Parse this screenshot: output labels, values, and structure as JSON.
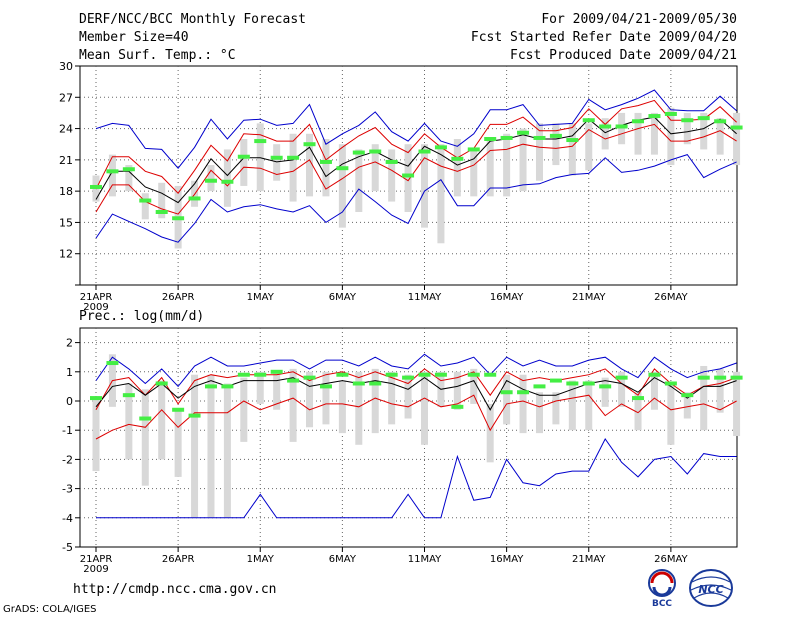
{
  "header": {
    "title": "DERF/NCC/BCC Monthly Forecast",
    "member_size": "Member Size=40",
    "variable": "Mean Surf. Temp.: °C",
    "period": "For 2009/04/21-2009/05/30",
    "fcst_started": "Fcst Started Refer Date 2009/04/20",
    "fcst_produced": "Fcst Produced Date 2009/04/21"
  },
  "footer": {
    "url": "http://cmdp.ncc.cma.gov.cn",
    "credit": "GrADS: COLA/IGES",
    "bcc_logo_text": "BCC",
    "ncc_logo_text": "NCC"
  },
  "colors": {
    "envelope": "#0000cc",
    "std_band": "#dd0000",
    "ensemble_mean": "#000000",
    "box": "#d8d8d8",
    "member_mark": "#44ee44",
    "grid": "#666666"
  },
  "chart_data": [
    {
      "type": "line",
      "title": "",
      "xlabel": "",
      "ylabel": "Mean Surf. Temp.: °C",
      "ylim": [
        9,
        30
      ],
      "yticks": [
        9,
        12,
        15,
        18,
        21,
        24,
        27,
        30
      ],
      "ytick_labels": [
        "",
        "12",
        "15",
        "18",
        "21",
        "24",
        "27",
        "30"
      ],
      "xlim": [
        1,
        41
      ],
      "xticks": [
        {
          "day": 1,
          "label": "21APR",
          "sub": "2009"
        },
        {
          "day": 6,
          "label": "26APR"
        },
        {
          "day": 11,
          "label": "1MAY"
        },
        {
          "day": 16,
          "label": "6MAY"
        },
        {
          "day": 21,
          "label": "11MAY"
        },
        {
          "day": 26,
          "label": "16MAY"
        },
        {
          "day": 31,
          "label": "21MAY"
        },
        {
          "day": 36,
          "label": "26MAY"
        }
      ],
      "days": [
        1,
        2,
        3,
        4,
        5,
        6,
        7,
        8,
        9,
        10,
        11,
        12,
        13,
        14,
        15,
        16,
        17,
        18,
        19,
        20,
        21,
        22,
        23,
        24,
        25,
        26,
        27,
        28,
        29,
        30,
        31,
        32,
        33,
        34,
        35,
        36,
        37,
        38,
        39,
        40
      ],
      "series": [
        {
          "name": "max",
          "values": [
            24.0,
            24.5,
            24.3,
            22.1,
            22.0,
            20.2,
            22.2,
            24.9,
            23.0,
            24.8,
            24.9,
            24.3,
            24.5,
            26.3,
            22.5,
            23.5,
            24.3,
            25.6,
            23.7,
            22.8,
            24.5,
            22.8,
            22.3,
            23.5,
            25.8,
            25.8,
            26.3,
            24.3,
            24.4,
            24.5,
            26.8,
            25.8,
            26.3,
            26.9,
            27.7,
            25.8,
            25.7,
            25.7,
            27.1,
            25.7
          ]
        },
        {
          "name": "upper",
          "values": [
            18.2,
            21.3,
            21.3,
            19.9,
            19.4,
            17.8,
            20.0,
            22.4,
            20.9,
            23.5,
            23.4,
            22.8,
            22.8,
            24.4,
            21.0,
            22.2,
            23.3,
            24.1,
            22.5,
            21.7,
            23.5,
            22.2,
            21.2,
            22.1,
            24.4,
            24.4,
            25.1,
            23.8,
            23.8,
            24.1,
            25.9,
            24.4,
            25.9,
            26.2,
            26.7,
            24.8,
            24.8,
            24.9,
            26.1,
            24.6
          ]
        },
        {
          "name": "mean",
          "values": [
            17.2,
            19.9,
            19.9,
            18.4,
            17.8,
            16.9,
            18.7,
            21.1,
            19.5,
            21.2,
            21.2,
            20.8,
            21.0,
            22.2,
            19.4,
            20.6,
            21.3,
            21.8,
            21.0,
            20.4,
            22.3,
            21.5,
            20.5,
            21.1,
            22.8,
            23.0,
            23.4,
            23.0,
            23.0,
            23.3,
            24.9,
            23.6,
            24.3,
            24.8,
            25.1,
            23.5,
            23.7,
            24.0,
            24.9,
            23.5
          ]
        },
        {
          "name": "lower",
          "values": [
            16.0,
            18.6,
            18.6,
            17.0,
            16.3,
            15.8,
            17.7,
            20.0,
            18.5,
            20.3,
            20.2,
            19.6,
            19.9,
            21.0,
            18.2,
            19.2,
            20.3,
            20.8,
            20.0,
            19.0,
            21.2,
            20.4,
            19.9,
            20.5,
            21.9,
            22.0,
            22.5,
            22.2,
            22.1,
            22.3,
            23.9,
            23.0,
            23.5,
            24.0,
            24.4,
            22.8,
            22.8,
            23.2,
            23.8,
            22.8
          ]
        },
        {
          "name": "min",
          "values": [
            13.5,
            15.8,
            15.1,
            14.4,
            13.6,
            13.1,
            14.9,
            17.2,
            16.0,
            16.5,
            16.7,
            16.3,
            16.0,
            16.6,
            15.0,
            16.0,
            18.2,
            17.0,
            15.7,
            14.9,
            18.0,
            19.1,
            16.6,
            16.6,
            18.3,
            18.3,
            18.6,
            18.7,
            19.3,
            19.6,
            19.7,
            21.2,
            19.8,
            20.0,
            20.4,
            21.0,
            21.5,
            19.3,
            20.1,
            20.8
          ]
        }
      ],
      "boxes": [
        [
          19.5,
          17.0
        ],
        [
          21.5,
          17.5
        ],
        [
          20.5,
          18.0
        ],
        [
          17.8,
          15.3
        ],
        [
          18.8,
          15.4
        ],
        [
          18.5,
          12.5
        ],
        [
          19.0,
          16.5
        ],
        [
          20.5,
          18.0
        ],
        [
          22.0,
          16.5
        ],
        [
          23.0,
          18.5
        ],
        [
          24.5,
          18.0
        ],
        [
          22.5,
          19.0
        ],
        [
          23.5,
          17.0
        ],
        [
          23.5,
          17.5
        ],
        [
          23.0,
          17.5
        ],
        [
          22.5,
          14.5
        ],
        [
          22.0,
          16.0
        ],
        [
          22.5,
          18.0
        ],
        [
          22.0,
          17.0
        ],
        [
          22.5,
          16.0
        ],
        [
          22.5,
          14.5
        ],
        [
          22.5,
          13.0
        ],
        [
          23.0,
          17.5
        ],
        [
          22.0,
          17.5
        ],
        [
          23.0,
          17.5
        ],
        [
          23.5,
          17.5
        ],
        [
          24.0,
          18.0
        ],
        [
          24.5,
          19.0
        ],
        [
          24.5,
          20.5
        ],
        [
          24.5,
          19.5
        ],
        [
          24.5,
          20.0
        ],
        [
          25.0,
          22.0
        ],
        [
          25.5,
          22.5
        ],
        [
          25.5,
          21.5
        ],
        [
          25.5,
          21.5
        ],
        [
          26.0,
          20.5
        ],
        [
          25.5,
          22.5
        ],
        [
          25.5,
          22.0
        ],
        [
          25.0,
          21.5
        ],
        [
          25.5,
          20.5
        ]
      ],
      "members": [
        18.4,
        19.9,
        20.1,
        17.1,
        16.0,
        15.4,
        17.3,
        19.0,
        18.9,
        21.3,
        22.8,
        21.2,
        21.2,
        22.5,
        20.8,
        20.2,
        21.7,
        21.8,
        20.8,
        19.5,
        21.8,
        22.2,
        21.1,
        22.0,
        23.0,
        23.1,
        23.6,
        23.1,
        23.3,
        22.9,
        24.8,
        24.2,
        24.2,
        24.7,
        25.2,
        25.4,
        24.8,
        25.0,
        24.7,
        24.1
      ]
    },
    {
      "type": "line",
      "title": "",
      "xlabel": "",
      "ylabel": "Prec.: log(mm/d)",
      "ylim": [
        -5,
        2.5
      ],
      "yticks": [
        -5,
        -4,
        -3,
        -2,
        -1,
        0,
        1,
        2
      ],
      "ytick_labels": [
        "-5",
        "-4",
        "-3",
        "-2",
        "-1",
        "0",
        "1",
        "2"
      ],
      "xlim": [
        1,
        41
      ],
      "xticks": [
        {
          "day": 1,
          "label": "21APR",
          "sub": "2009"
        },
        {
          "day": 6,
          "label": "26APR"
        },
        {
          "day": 11,
          "label": "1MAY"
        },
        {
          "day": 16,
          "label": "6MAY"
        },
        {
          "day": 21,
          "label": "11MAY"
        },
        {
          "day": 26,
          "label": "16MAY"
        },
        {
          "day": 31,
          "label": "21MAY"
        },
        {
          "day": 36,
          "label": "26MAY"
        }
      ],
      "days": [
        1,
        2,
        3,
        4,
        5,
        6,
        7,
        8,
        9,
        10,
        11,
        12,
        13,
        14,
        15,
        16,
        17,
        18,
        19,
        20,
        21,
        22,
        23,
        24,
        25,
        26,
        27,
        28,
        29,
        30,
        31,
        32,
        33,
        34,
        35,
        36,
        37,
        38,
        39,
        40
      ],
      "series": [
        {
          "name": "max",
          "values": [
            0.7,
            1.5,
            1.1,
            0.6,
            1.1,
            0.5,
            1.2,
            1.5,
            1.2,
            1.2,
            1.3,
            1.4,
            1.4,
            1.1,
            1.4,
            1.4,
            1.2,
            1.5,
            1.2,
            1.1,
            1.6,
            1.2,
            1.3,
            1.5,
            0.9,
            1.5,
            1.2,
            1.4,
            1.2,
            1.2,
            1.4,
            1.5,
            1.1,
            0.8,
            1.5,
            1.1,
            0.8,
            1.0,
            1.1,
            1.3
          ]
        },
        {
          "name": "upper",
          "values": [
            -0.3,
            0.7,
            0.8,
            0.2,
            0.8,
            -0.1,
            0.7,
            0.9,
            0.8,
            0.9,
            0.9,
            0.9,
            1.0,
            0.7,
            0.9,
            1.0,
            0.8,
            1.0,
            0.8,
            0.6,
            1.1,
            0.7,
            0.8,
            1.0,
            0.2,
            1.0,
            0.7,
            0.8,
            0.7,
            0.8,
            0.9,
            1.1,
            0.6,
            0.2,
            1.1,
            0.6,
            0.2,
            0.5,
            0.6,
            0.8
          ]
        },
        {
          "name": "mean",
          "values": [
            -0.2,
            0.5,
            0.6,
            0.2,
            0.6,
            0.1,
            0.5,
            0.7,
            0.5,
            0.7,
            0.7,
            0.7,
            0.8,
            0.5,
            0.6,
            0.7,
            0.6,
            0.7,
            0.6,
            0.4,
            0.8,
            0.4,
            0.5,
            0.7,
            -0.3,
            0.7,
            0.4,
            0.2,
            0.2,
            0.4,
            0.6,
            0.7,
            0.6,
            0.3,
            0.8,
            0.5,
            0.1,
            0.5,
            0.5,
            0.7
          ]
        },
        {
          "name": "lower",
          "values": [
            -1.3,
            -1.0,
            -0.8,
            -0.9,
            -0.3,
            -0.9,
            -0.4,
            -0.4,
            -0.4,
            0.0,
            -0.3,
            -0.1,
            0.1,
            -0.3,
            -0.1,
            -0.1,
            -0.2,
            0.1,
            -0.1,
            -0.2,
            0.1,
            -0.2,
            -0.1,
            0.2,
            -1.0,
            -0.1,
            0.0,
            -0.2,
            0.0,
            0.1,
            0.2,
            -0.5,
            -0.1,
            -0.4,
            0.1,
            -0.3,
            -0.2,
            -0.1,
            -0.3,
            0.0
          ]
        },
        {
          "name": "min",
          "values": [
            -4.0,
            -4.0,
            -4.0,
            -4.0,
            -4.0,
            -4.0,
            -4.0,
            -4.0,
            -4.0,
            -4.0,
            -3.2,
            -4.0,
            -4.0,
            -4.0,
            -4.0,
            -4.0,
            -4.0,
            -4.0,
            -4.0,
            -3.2,
            -4.0,
            -4.0,
            -1.9,
            -3.4,
            -3.3,
            -2.0,
            -2.8,
            -2.9,
            -2.5,
            -2.4,
            -2.4,
            -1.3,
            -2.1,
            -2.6,
            -2.0,
            -1.9,
            -2.5,
            -1.8,
            -1.9,
            -1.9
          ]
        }
      ],
      "boxes": [
        [
          0.1,
          -2.4
        ],
        [
          1.6,
          -0.2
        ],
        [
          0.6,
          -2.0
        ],
        [
          0.4,
          -2.9
        ],
        [
          0.7,
          -2.0
        ],
        [
          -0.3,
          -2.6
        ],
        [
          0.9,
          -4.0
        ],
        [
          0.9,
          -4.0
        ],
        [
          0.6,
          -4.0
        ],
        [
          0.8,
          -1.4
        ],
        [
          1.0,
          -0.1
        ],
        [
          1.0,
          -0.3
        ],
        [
          1.1,
          -1.4
        ],
        [
          1.0,
          -0.9
        ],
        [
          1.0,
          -0.8
        ],
        [
          0.7,
          -1.1
        ],
        [
          1.0,
          -1.5
        ],
        [
          1.1,
          -1.1
        ],
        [
          1.0,
          -0.8
        ],
        [
          0.9,
          -0.6
        ],
        [
          1.0,
          -1.5
        ],
        [
          1.0,
          -0.2
        ],
        [
          1.0,
          -0.3
        ],
        [
          1.1,
          -0.1
        ],
        [
          -0.1,
          -2.1
        ],
        [
          0.9,
          -0.8
        ],
        [
          0.9,
          -1.1
        ],
        [
          0.3,
          -1.1
        ],
        [
          0.3,
          -0.8
        ],
        [
          0.7,
          -1.0
        ],
        [
          0.7,
          -1.0
        ],
        [
          0.8,
          -0.2
        ],
        [
          1.0,
          -0.2
        ],
        [
          0.3,
          -1.0
        ],
        [
          1.0,
          -0.3
        ],
        [
          0.6,
          -1.5
        ],
        [
          0.3,
          -0.6
        ],
        [
          1.2,
          -1.0
        ],
        [
          1.1,
          -0.4
        ],
        [
          1.0,
          -1.2
        ]
      ],
      "members": [
        0.1,
        1.3,
        0.2,
        -0.6,
        0.6,
        -0.3,
        -0.5,
        0.5,
        0.5,
        0.9,
        0.9,
        1.0,
        0.7,
        0.8,
        0.5,
        0.9,
        0.6,
        0.6,
        0.9,
        0.8,
        0.9,
        0.9,
        -0.2,
        0.9,
        0.9,
        0.3,
        0.3,
        0.5,
        0.7,
        0.6,
        0.6,
        0.5,
        0.8,
        0.1,
        0.9,
        0.6,
        0.2,
        0.8,
        0.8,
        0.8
      ]
    }
  ]
}
